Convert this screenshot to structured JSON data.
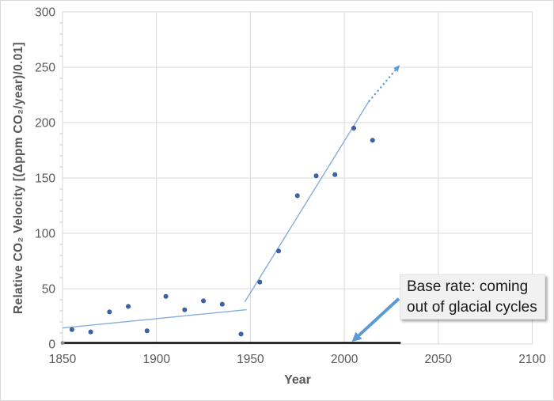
{
  "chart_data": {
    "type": "scatter",
    "title": "",
    "xlabel": "Year",
    "ylabel": "Relative CO₂ Velocity [(Δppm CO₂/year)/0.01]",
    "xlim": [
      1850,
      2100
    ],
    "ylim": [
      0,
      300
    ],
    "x_ticks": [
      1850,
      1900,
      1950,
      2000,
      2050,
      2100
    ],
    "y_ticks": [
      0,
      50,
      100,
      150,
      200,
      250,
      300
    ],
    "y_minor_step": 10,
    "grid": true,
    "legend": "none",
    "series": [
      {
        "name": "observed-co2-velocity",
        "type": "scatter",
        "color": "#3D63AC",
        "edge_color": "#2F4F87",
        "points": [
          [
            1855,
            13
          ],
          [
            1865,
            11
          ],
          [
            1875,
            29
          ],
          [
            1885,
            34
          ],
          [
            1895,
            12
          ],
          [
            1905,
            43
          ],
          [
            1915,
            31
          ],
          [
            1925,
            39
          ],
          [
            1935,
            36
          ],
          [
            1945,
            9
          ],
          [
            1955,
            56
          ],
          [
            1965,
            84
          ],
          [
            1975,
            134
          ],
          [
            1985,
            152
          ],
          [
            1995,
            153
          ],
          [
            2005,
            195
          ],
          [
            2015,
            184
          ]
        ]
      },
      {
        "name": "trend-1850-1950",
        "type": "line",
        "color": "#85ADDB",
        "width": 1.4,
        "points": [
          [
            1850,
            14.5
          ],
          [
            1948,
            31
          ]
        ]
      },
      {
        "name": "trend-1950-2013",
        "type": "line",
        "color": "#85ADDB",
        "width": 1.4,
        "points": [
          [
            1947,
            38
          ],
          [
            2013,
            219
          ]
        ]
      },
      {
        "name": "trend-projection-dotted",
        "type": "line",
        "color": "#5B9BD5",
        "width": 2.2,
        "dash": "2.2 3.4",
        "arrow": true,
        "points": [
          [
            2013,
            219
          ],
          [
            2029.5,
            252
          ]
        ]
      },
      {
        "name": "glacial-base-rate",
        "type": "line",
        "color": "#000000",
        "width": 2.4,
        "start_marker": "#8C8C8C",
        "points": [
          [
            1850,
            1
          ],
          [
            2030,
            1
          ]
        ]
      }
    ],
    "annotation": {
      "text_line1": "Base rate: coming",
      "text_line2": "out of glacial cycles",
      "arrow": {
        "from": [
          2029,
          41
        ],
        "to": [
          2004,
          2
        ],
        "color": "#5B9BD5",
        "width": 4
      }
    },
    "style": {
      "background": "#FFFFFF",
      "frame_color": "#D9D9D9",
      "grid_color": "#D9D9D9",
      "minor_tick_color": "#BFBFBF",
      "tick_label_color": "#595959",
      "axis_title_color": "#595959"
    }
  }
}
